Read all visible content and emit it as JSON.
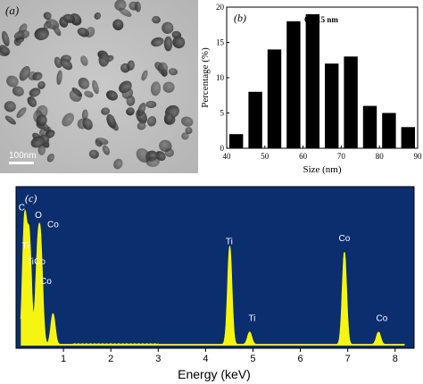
{
  "panels": {
    "a": {
      "label": "(a)",
      "scale_bar_label": "100nm"
    }
  },
  "chart_data": [
    {
      "type": "bar",
      "panel_label": "(b)",
      "title": "65±15 nm",
      "xlabel": "Size (nm)",
      "ylabel": "Percentage (%)",
      "xlim": [
        40,
        90
      ],
      "ylim": [
        0,
        20
      ],
      "xticks": [
        40,
        50,
        60,
        70,
        80,
        90
      ],
      "yticks": [
        0,
        5,
        10,
        15,
        20
      ],
      "bin_width": 5,
      "bins": [
        42.5,
        47.5,
        52.5,
        57.5,
        62.5,
        67.5,
        72.5,
        77.5,
        82.5,
        87.5
      ],
      "values": [
        2,
        8,
        14,
        18,
        19,
        12,
        13,
        6,
        5,
        3
      ],
      "grid": false,
      "bar_color": "#000000"
    },
    {
      "type": "line",
      "panel_label": "(c)",
      "xlabel": "Energy (keV)",
      "xlim": [
        0,
        8.4
      ],
      "xticks": [
        1,
        2,
        3,
        4,
        5,
        6,
        7,
        8
      ],
      "background_color": "#0a2e6e",
      "line_color": "#f5f511",
      "peaks": [
        {
          "x": 0.18,
          "height": 0.8,
          "label": "C"
        },
        {
          "x": 0.28,
          "height": 0.68,
          "label": "Ti"
        },
        {
          "x": 0.45,
          "height": 0.48,
          "label": "Co"
        },
        {
          "x": 0.52,
          "height": 0.58,
          "label": "O"
        },
        {
          "x": 0.78,
          "height": 0.2,
          "label": "Co"
        },
        {
          "x": 4.51,
          "height": 0.64,
          "label": "Ti"
        },
        {
          "x": 4.93,
          "height": 0.08,
          "label": "Ti"
        },
        {
          "x": 6.93,
          "height": 0.6,
          "label": "Co"
        },
        {
          "x": 7.65,
          "height": 0.08,
          "label": "Co"
        }
      ],
      "peak_labels": [
        {
          "text": "C",
          "x": 0.12,
          "level": 0.88
        },
        {
          "text": "O",
          "x": 0.47,
          "level": 0.83
        },
        {
          "text": "Co",
          "x": 0.78,
          "level": 0.77
        },
        {
          "text": "Ti",
          "x": 0.2,
          "level": 0.63
        },
        {
          "text": "Ti",
          "x": 0.3,
          "level": 0.53
        },
        {
          "text": "Co",
          "x": 0.5,
          "level": 0.53
        },
        {
          "text": "Co",
          "x": 0.63,
          "level": 0.4
        },
        {
          "text": "Ti",
          "x": 4.5,
          "level": 0.66
        },
        {
          "text": "Ti",
          "x": 4.98,
          "level": 0.16
        },
        {
          "text": "Co",
          "x": 6.93,
          "level": 0.68
        },
        {
          "text": "Co",
          "x": 7.72,
          "level": 0.16
        }
      ]
    }
  ]
}
